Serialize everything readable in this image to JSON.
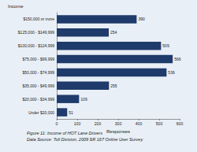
{
  "chart_data": {
    "type": "bar",
    "orientation": "horizontal",
    "y_label": "Income",
    "x_label": "Responses",
    "categories": [
      "$150,000 or more",
      "$125,000 - $149,999",
      "$100,000 - $124,999",
      "$75,000 - $99,999",
      "$50,000 - $74,999",
      "$35,000 - $49,999",
      "$20,000 - $34,999",
      "Under $20,000"
    ],
    "values": [
      390,
      254,
      509,
      566,
      536,
      255,
      109,
      51
    ],
    "color": "#1f3b6b",
    "xlim": [
      0,
      600
    ],
    "xticks": [
      0,
      100,
      200,
      300,
      400,
      500,
      600
    ],
    "grid": false,
    "data_labels": true,
    "annotations": [
      "Figure 11: Income of HOT Lane Drivers",
      "Data Source: Toll Division, 2009 SR 167 Online User Survey"
    ]
  }
}
